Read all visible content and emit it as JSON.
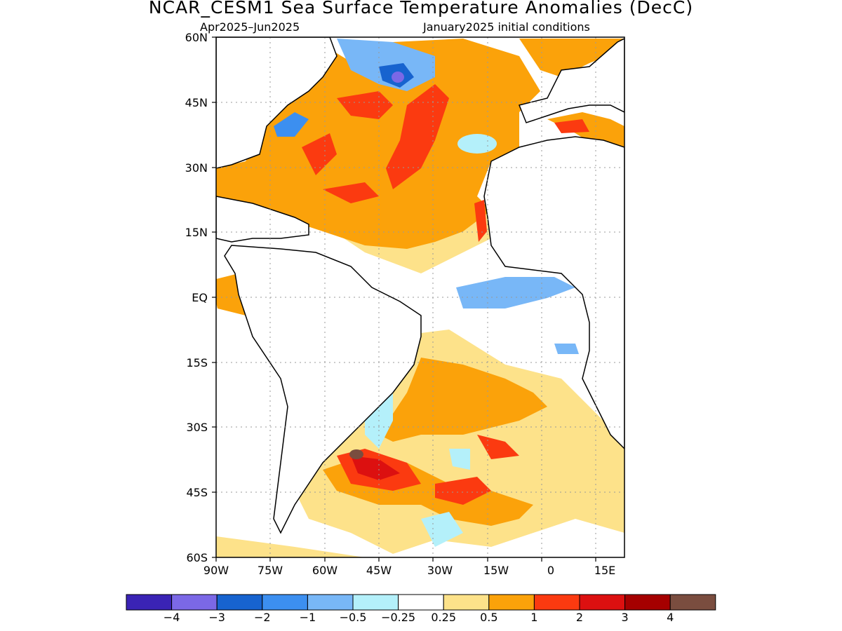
{
  "title": "NCAR_CESM1 Sea Surface Temperature Anomalies (DecC)",
  "subtitle_left": "Apr2025–Jun2025",
  "subtitle_right": "January2025 initial conditions",
  "map": {
    "lat_labels": [
      "60N",
      "45N",
      "30N",
      "15N",
      "EQ",
      "15S",
      "30S",
      "45S",
      "60S"
    ],
    "lon_labels": [
      "90W",
      "75W",
      "60W",
      "45W",
      "30W",
      "15W",
      "0",
      "15E"
    ],
    "region": "Atlantic Ocean, 90W–20E, 60S–60N",
    "colors": {
      "land": "#ffffff",
      "neutral": "#ffffff",
      "coast": "#000000"
    }
  },
  "colorbar": {
    "colors": [
      "#3a23b5",
      "#7b68e6",
      "#1763cf",
      "#3c8ff0",
      "#78b7f7",
      "#b4f0fa",
      "#ffffff",
      "#fde28a",
      "#fba20a",
      "#fb3a10",
      "#dc1010",
      "#a50000",
      "#7a4d3f"
    ],
    "labels": [
      "−4",
      "−3",
      "−2",
      "−1",
      "−0.5",
      "−0.25",
      "0.25",
      "0.5",
      "1",
      "2",
      "3",
      "4"
    ]
  }
}
